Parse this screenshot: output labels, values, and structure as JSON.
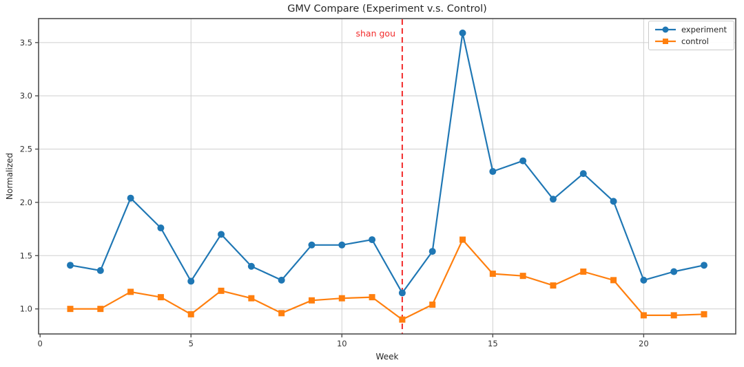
{
  "chart_data": {
    "type": "line",
    "title": "GMV Compare (Experiment v.s. Control)",
    "xlabel": "Week",
    "ylabel": "Normalized",
    "x": [
      1,
      2,
      3,
      4,
      5,
      6,
      7,
      8,
      9,
      10,
      11,
      12,
      13,
      14,
      15,
      16,
      17,
      18,
      19,
      20,
      21,
      22
    ],
    "series": [
      {
        "name": "experiment",
        "color": "#1f77b4",
        "marker": "circle",
        "values": [
          1.41,
          1.36,
          2.04,
          1.76,
          1.26,
          1.7,
          1.4,
          1.27,
          1.6,
          1.6,
          1.65,
          1.15,
          1.54,
          3.59,
          2.29,
          2.39,
          2.03,
          2.27,
          2.01,
          1.27,
          1.35,
          1.41
        ]
      },
      {
        "name": "control",
        "color": "#ff7f0e",
        "marker": "square",
        "values": [
          1.0,
          1.0,
          1.16,
          1.11,
          0.95,
          1.17,
          1.1,
          0.96,
          1.08,
          1.1,
          1.11,
          0.9,
          1.04,
          1.65,
          1.33,
          1.31,
          1.22,
          1.35,
          1.27,
          0.94,
          0.94,
          0.95
        ]
      }
    ],
    "annotation": {
      "text": "shan gou",
      "x": 12,
      "color": "#f22b2b",
      "line_style": "dashed"
    },
    "xticks": [
      0,
      5,
      10,
      15,
      20
    ],
    "xtick_labels": [
      "0",
      "5",
      "10",
      "15",
      "20"
    ],
    "yticks": [
      1.0,
      1.5,
      2.0,
      2.5,
      3.0,
      3.5
    ],
    "ytick_labels": [
      "1.0",
      "1.5",
      "2.0",
      "2.5",
      "3.0",
      "3.5"
    ],
    "xlim": [
      -0.05,
      23.05
    ],
    "ylim": [
      0.765,
      3.725
    ],
    "grid": true,
    "grid_color": "#cfcfcf",
    "spine_color": "#4d4d4d",
    "legend_position": "upper right"
  }
}
